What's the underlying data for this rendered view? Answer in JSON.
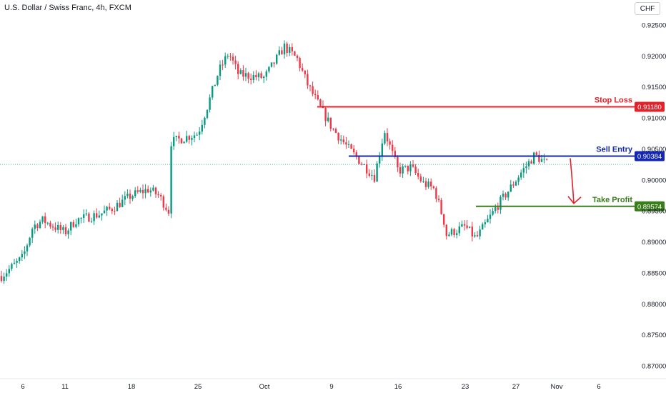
{
  "header": {
    "title": "U.S. Dollar / Swiss Franc, 4h, FXCM",
    "currency_button": "CHF"
  },
  "colors": {
    "up": "#089981",
    "down": "#f23645",
    "stop_loss": "#e0222b",
    "sell_entry": "#1428b4",
    "take_profit": "#3a7d1b",
    "arrow": "#e0222b",
    "axis_text": "#131722",
    "current_price_line": "#089981"
  },
  "chart_data": {
    "type": "candlestick",
    "title": "U.S. Dollar / Swiss Franc, 4h, FXCM",
    "ylim": [
      0.8675,
      0.9265
    ],
    "y_ticks": [
      0.925,
      0.92,
      0.915,
      0.91,
      0.905,
      0.9,
      0.895,
      0.89,
      0.885,
      0.88,
      0.875,
      0.87
    ],
    "y_tick_labels": [
      "0.92500",
      "0.92000",
      "0.91500",
      "0.91000",
      "0.90500",
      "0.90000",
      "0.89500",
      "0.89000",
      "0.88500",
      "0.88000",
      "0.87500",
      "0.87000"
    ],
    "x_tick_labels": [
      "6",
      "11",
      "18",
      "25",
      "Oct",
      "9",
      "16",
      "23",
      "27",
      "Nov",
      "6"
    ],
    "grid": false,
    "series_anchors": [
      {
        "date": "Sep 5",
        "close": 0.8845
      },
      {
        "date": "Sep 6",
        "close": 0.8875
      },
      {
        "date": "Sep 7",
        "close": 0.8925
      },
      {
        "date": "Sep 8",
        "close": 0.8935
      },
      {
        "date": "Sep 11",
        "close": 0.8915
      },
      {
        "date": "Sep 12",
        "close": 0.8935
      },
      {
        "date": "Sep 14",
        "close": 0.8945
      },
      {
        "date": "Sep 15",
        "close": 0.8955
      },
      {
        "date": "Sep 18",
        "close": 0.8975
      },
      {
        "date": "Sep 20",
        "close": 0.8985
      },
      {
        "date": "Sep 21",
        "close": 0.8975
      },
      {
        "date": "Sep 22",
        "close": 0.895
      },
      {
        "date": "Sep 22",
        "close": 0.906
      },
      {
        "date": "Sep 25",
        "close": 0.9075
      },
      {
        "date": "Sep 26",
        "close": 0.9125
      },
      {
        "date": "Sep 27",
        "close": 0.9175
      },
      {
        "date": "Sep 28",
        "close": 0.9205
      },
      {
        "date": "Sep 29",
        "close": 0.917
      },
      {
        "date": "Oct 2",
        "close": 0.9165
      },
      {
        "date": "Oct 3",
        "close": 0.9215
      },
      {
        "date": "Oct 4",
        "close": 0.9195
      },
      {
        "date": "Oct 5",
        "close": 0.9155
      },
      {
        "date": "Oct 6",
        "close": 0.9125
      },
      {
        "date": "Oct 9",
        "close": 0.9085
      },
      {
        "date": "Oct 10",
        "close": 0.905
      },
      {
        "date": "Oct 11",
        "close": 0.9025
      },
      {
        "date": "Oct 12",
        "close": 0.9005
      },
      {
        "date": "Oct 13",
        "close": 0.908
      },
      {
        "date": "Oct 16",
        "close": 0.9015
      },
      {
        "date": "Oct 17",
        "close": 0.902
      },
      {
        "date": "Oct 18",
        "close": 0.8995
      },
      {
        "date": "Oct 19",
        "close": 0.8985
      },
      {
        "date": "Oct 20",
        "close": 0.893
      },
      {
        "date": "Oct 20",
        "close": 0.891
      },
      {
        "date": "Oct 23",
        "close": 0.8925
      },
      {
        "date": "Oct 24",
        "close": 0.8905
      },
      {
        "date": "Oct 25",
        "close": 0.8955
      },
      {
        "date": "Oct 26",
        "close": 0.8985
      },
      {
        "date": "Oct 27",
        "close": 0.901
      },
      {
        "date": "Oct 30",
        "close": 0.904
      },
      {
        "date": "Oct 31",
        "close": 0.9025
      }
    ],
    "levels": [
      {
        "name": "Stop Loss",
        "value": 0.9118,
        "label": "0.91180",
        "from": "Oct 6"
      },
      {
        "name": "Sell Entry",
        "value": 0.90384,
        "label": "0.90384",
        "from": "Oct 10"
      },
      {
        "name": "Take Profit",
        "value": 0.89574,
        "label": "0.89574",
        "from": "Oct 24"
      }
    ],
    "current_price": 0.9025
  }
}
